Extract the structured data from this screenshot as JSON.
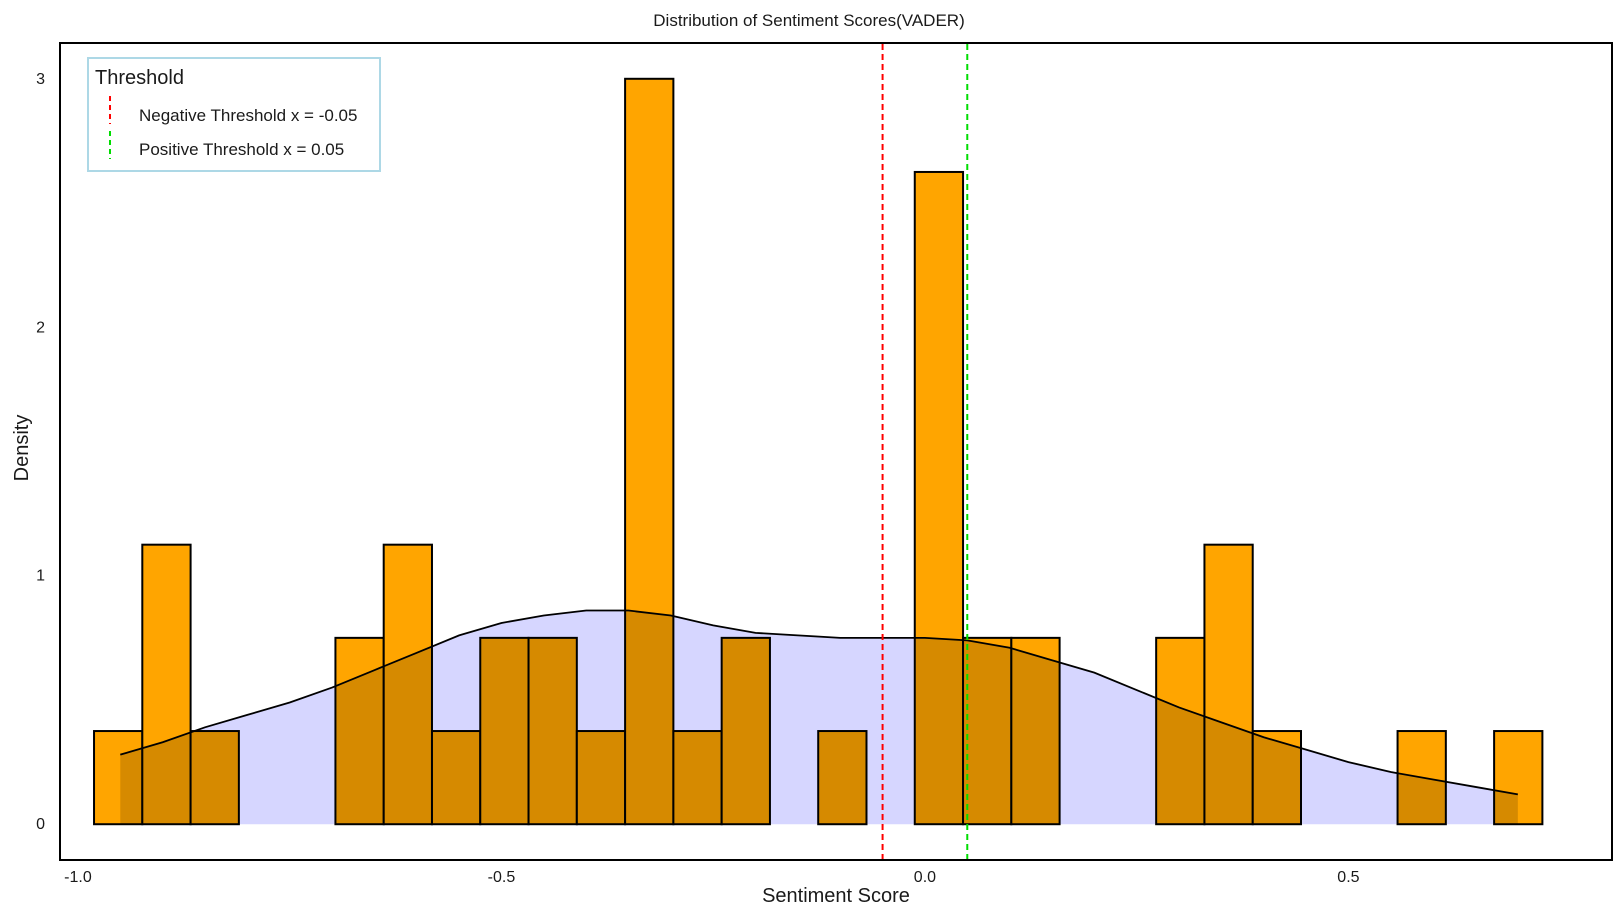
{
  "chart_data": {
    "type": "bar",
    "title": "Distribution of Sentiment Scores(VADER)",
    "xlabel": "Sentiment Score",
    "ylabel": "Density",
    "xlim": [
      -1.02,
      0.81
    ],
    "ylim": [
      -0.14,
      3.14
    ],
    "xticks": [
      -1.0,
      -0.5,
      0.0,
      0.5
    ],
    "xtick_labels": [
      "-1.0",
      "-0.5",
      "0.0",
      "0.5"
    ],
    "yticks": [
      0,
      1,
      2,
      3
    ],
    "ytick_labels": [
      "0",
      "1",
      "2",
      "3"
    ],
    "grid": false,
    "histogram": {
      "bin_width": 0.057,
      "first_bin_start": -0.981,
      "bar_color": "#FFA500",
      "edge_color": "#000000",
      "values": [
        0.375,
        1.125,
        0.375,
        0,
        0,
        0.75,
        1.125,
        0.375,
        0.75,
        0.75,
        0.375,
        3.0,
        0.375,
        0.75,
        0,
        0.375,
        0,
        2.625,
        0.75,
        0.75,
        0,
        0,
        0.75,
        1.125,
        0.375,
        0,
        0,
        0.375,
        0,
        0.375
      ]
    },
    "density_curve": {
      "fill_color": "#CCCCFF",
      "line_color": "#000000",
      "x": [
        -0.95,
        -0.9,
        -0.85,
        -0.8,
        -0.75,
        -0.7,
        -0.65,
        -0.6,
        -0.55,
        -0.5,
        -0.45,
        -0.4,
        -0.35,
        -0.3,
        -0.25,
        -0.2,
        -0.15,
        -0.1,
        -0.05,
        0.0,
        0.05,
        0.1,
        0.15,
        0.2,
        0.25,
        0.3,
        0.35,
        0.4,
        0.45,
        0.5,
        0.55,
        0.6,
        0.65,
        0.7
      ],
      "y": [
        0.28,
        0.33,
        0.39,
        0.44,
        0.49,
        0.55,
        0.62,
        0.69,
        0.76,
        0.81,
        0.84,
        0.86,
        0.86,
        0.84,
        0.8,
        0.77,
        0.76,
        0.75,
        0.75,
        0.75,
        0.74,
        0.71,
        0.66,
        0.61,
        0.54,
        0.47,
        0.41,
        0.35,
        0.3,
        0.25,
        0.21,
        0.18,
        0.15,
        0.12
      ]
    },
    "threshold_lines": [
      {
        "x": -0.05,
        "color": "#FF0000",
        "label": "Negative Threshold x = -0.05"
      },
      {
        "x": 0.05,
        "color": "#00DD00",
        "label": "Positive Threshold x = 0.05"
      }
    ],
    "legend": {
      "title": "Threshold",
      "placement": "top-left",
      "border_color": "#ADD8E6"
    }
  }
}
